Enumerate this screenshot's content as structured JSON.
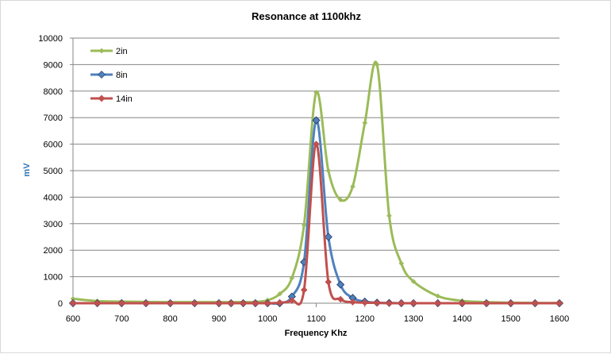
{
  "chart_data": {
    "type": "line",
    "title": "Resonance at 1100khz",
    "xlabel": "Frequency Khz",
    "ylabel": "mV",
    "xlim": [
      600,
      1600
    ],
    "ylim": [
      0,
      10000
    ],
    "x_ticks": [
      600,
      700,
      800,
      900,
      1000,
      1100,
      1200,
      1300,
      1400,
      1500,
      1600
    ],
    "y_ticks": [
      0,
      1000,
      2000,
      3000,
      4000,
      5000,
      6000,
      7000,
      8000,
      9000,
      10000
    ],
    "grid": "horizontal",
    "legend_position": "top-left",
    "series": [
      {
        "name": "2in",
        "color": "#9BBB59",
        "marker": "diamond-small",
        "points": [
          [
            600,
            170
          ],
          [
            650,
            80
          ],
          [
            700,
            60
          ],
          [
            750,
            50
          ],
          [
            800,
            40
          ],
          [
            850,
            40
          ],
          [
            900,
            40
          ],
          [
            925,
            40
          ],
          [
            950,
            40
          ],
          [
            975,
            50
          ],
          [
            1000,
            110
          ],
          [
            1025,
            350
          ],
          [
            1050,
            950
          ],
          [
            1075,
            2950
          ],
          [
            1100,
            7950
          ],
          [
            1125,
            5000
          ],
          [
            1150,
            3900
          ],
          [
            1175,
            4400
          ],
          [
            1200,
            6800
          ],
          [
            1225,
            9000
          ],
          [
            1250,
            3300
          ],
          [
            1275,
            1500
          ],
          [
            1300,
            820
          ],
          [
            1350,
            270
          ],
          [
            1400,
            90
          ],
          [
            1450,
            40
          ],
          [
            1500,
            20
          ],
          [
            1550,
            10
          ],
          [
            1600,
            10
          ]
        ]
      },
      {
        "name": "8in",
        "color": "#4F81BD",
        "marker": "diamond-large",
        "points": [
          [
            600,
            0
          ],
          [
            650,
            0
          ],
          [
            700,
            0
          ],
          [
            750,
            0
          ],
          [
            800,
            0
          ],
          [
            850,
            0
          ],
          [
            900,
            0
          ],
          [
            925,
            0
          ],
          [
            950,
            0
          ],
          [
            975,
            0
          ],
          [
            1000,
            0
          ],
          [
            1025,
            0
          ],
          [
            1050,
            250
          ],
          [
            1075,
            1550
          ],
          [
            1100,
            6900
          ],
          [
            1125,
            2500
          ],
          [
            1150,
            700
          ],
          [
            1175,
            200
          ],
          [
            1200,
            60
          ],
          [
            1225,
            20
          ],
          [
            1250,
            10
          ],
          [
            1275,
            0
          ],
          [
            1300,
            0
          ],
          [
            1350,
            0
          ],
          [
            1400,
            0
          ],
          [
            1450,
            0
          ],
          [
            1500,
            0
          ],
          [
            1550,
            0
          ],
          [
            1600,
            0
          ]
        ]
      },
      {
        "name": "14in",
        "color": "#C0504D",
        "marker": "diamond-medium",
        "points": [
          [
            600,
            0
          ],
          [
            650,
            0
          ],
          [
            700,
            0
          ],
          [
            750,
            0
          ],
          [
            800,
            0
          ],
          [
            850,
            0
          ],
          [
            900,
            0
          ],
          [
            925,
            0
          ],
          [
            950,
            0
          ],
          [
            975,
            0
          ],
          [
            1000,
            0
          ],
          [
            1025,
            20
          ],
          [
            1050,
            100
          ],
          [
            1075,
            500
          ],
          [
            1100,
            6000
          ],
          [
            1125,
            800
          ],
          [
            1150,
            150
          ],
          [
            1175,
            40
          ],
          [
            1200,
            20
          ],
          [
            1225,
            10
          ],
          [
            1250,
            0
          ],
          [
            1275,
            0
          ],
          [
            1300,
            0
          ],
          [
            1350,
            0
          ],
          [
            1400,
            0
          ],
          [
            1450,
            0
          ],
          [
            1500,
            0
          ],
          [
            1550,
            0
          ],
          [
            1600,
            0
          ]
        ]
      }
    ]
  }
}
